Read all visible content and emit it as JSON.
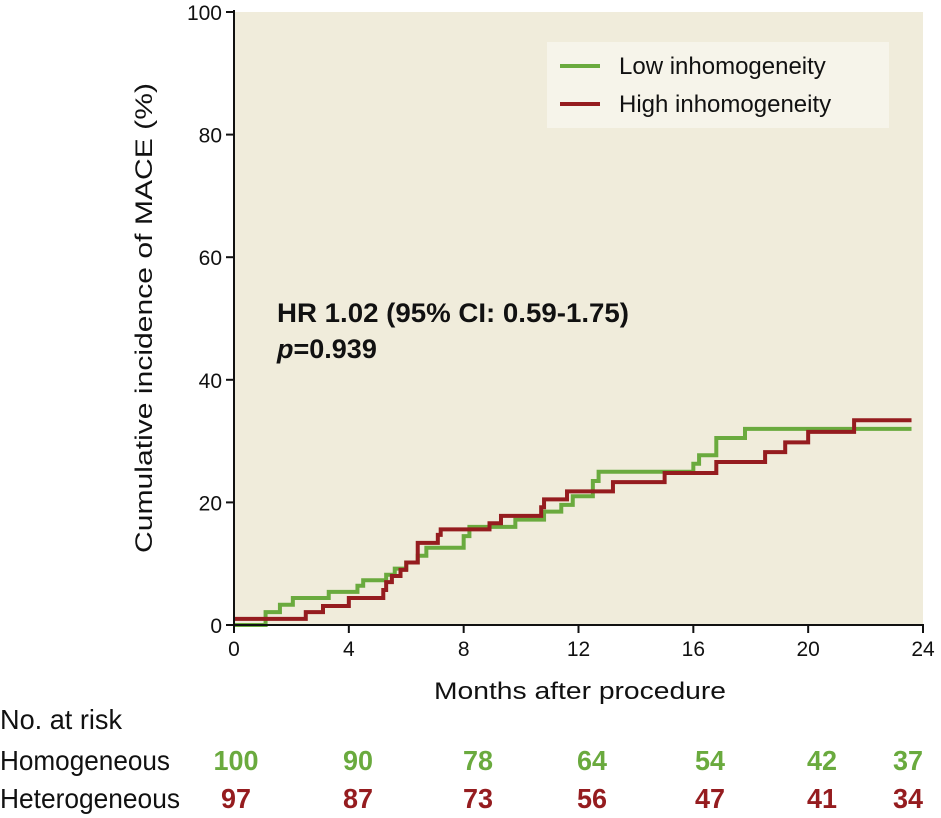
{
  "chart_data": {
    "type": "line",
    "subtype": "kaplan-meier step",
    "xlabel": "Months after procedure",
    "ylabel": "Cumulative incidence of MACE (%)",
    "xlim": [
      0,
      24
    ],
    "ylim": [
      0,
      100
    ],
    "xticks": [
      0,
      4,
      8,
      12,
      16,
      20,
      24
    ],
    "yticks": [
      0,
      20,
      40,
      60,
      80,
      100
    ],
    "grid": false,
    "legend_position": "top-right",
    "background": "#f0ecdb",
    "annotation": {
      "line1": "HR 1.02 (95% CI: 0.59-1.75)",
      "p_label": "p",
      "p_value": "=0.939"
    },
    "series": [
      {
        "name": "Low inhomogeneity",
        "color": "#6aaa3e",
        "points": [
          [
            0,
            0
          ],
          [
            1.1,
            2.1
          ],
          [
            1.6,
            3.3
          ],
          [
            2.05,
            4.4
          ],
          [
            3.3,
            5.4
          ],
          [
            4.3,
            6.4
          ],
          [
            4.5,
            7.3
          ],
          [
            5.3,
            8.2
          ],
          [
            5.6,
            9.2
          ],
          [
            6.0,
            10.2
          ],
          [
            6.4,
            11.3
          ],
          [
            6.7,
            12.6
          ],
          [
            8.0,
            14.5
          ],
          [
            8.2,
            16.0
          ],
          [
            9.8,
            17.2
          ],
          [
            10.8,
            18.5
          ],
          [
            11.4,
            19.6
          ],
          [
            11.8,
            21.0
          ],
          [
            12.5,
            23.5
          ],
          [
            12.7,
            25.0
          ],
          [
            16.0,
            26.3
          ],
          [
            16.2,
            27.7
          ],
          [
            16.8,
            30.5
          ],
          [
            17.8,
            32.0
          ],
          [
            23.6,
            32.0
          ]
        ]
      },
      {
        "name": "High inhomogeneity",
        "color": "#951c1f",
        "points": [
          [
            0,
            1.0
          ],
          [
            2.5,
            2.1
          ],
          [
            3.1,
            3.1
          ],
          [
            4.0,
            4.4
          ],
          [
            5.2,
            5.7
          ],
          [
            5.3,
            7.0
          ],
          [
            5.5,
            8.0
          ],
          [
            5.8,
            9.0
          ],
          [
            6.0,
            10.2
          ],
          [
            6.4,
            13.4
          ],
          [
            7.1,
            14.7
          ],
          [
            7.2,
            15.6
          ],
          [
            8.9,
            16.6
          ],
          [
            9.3,
            17.8
          ],
          [
            10.7,
            19.2
          ],
          [
            10.8,
            20.5
          ],
          [
            11.6,
            21.8
          ],
          [
            13.2,
            23.3
          ],
          [
            15.0,
            24.8
          ],
          [
            16.8,
            26.6
          ],
          [
            18.5,
            28.2
          ],
          [
            19.2,
            29.8
          ],
          [
            20.0,
            31.5
          ],
          [
            21.6,
            33.4
          ],
          [
            23.6,
            33.4
          ]
        ]
      }
    ],
    "risk_table": {
      "title": "No. at risk",
      "rows": [
        {
          "label": "Homogeneous",
          "color": "#6aaa3e",
          "values": [
            "100",
            "90",
            "78",
            "64",
            "54",
            "42",
            "37"
          ]
        },
        {
          "label": "Heterogeneous",
          "color": "#951c1f",
          "values": [
            "97",
            "87",
            "73",
            "56",
            "47",
            "41",
            "34"
          ]
        }
      ]
    }
  }
}
